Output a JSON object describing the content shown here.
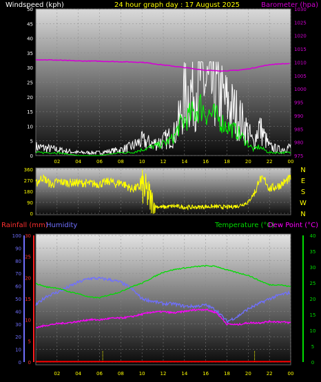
{
  "header": {
    "wind_title": "Windspeed (kph)",
    "date_title": "24 hour graph day : 17 August 2025",
    "baro_title": "Barometer (hpa)"
  },
  "bottom": {
    "rain_title": "Rainfall (mm)",
    "hum_title": "Humidity",
    "temp_title": "Temperature (°C)",
    "dew_title": "Dew Point (°C)"
  },
  "colors": {
    "wind": "#ffffff",
    "wind_avg": "#00ff00",
    "baro": "#d400d4",
    "direction": "#ffff00",
    "rain": "#ff0000",
    "humidity": "#7070ff",
    "temperature": "#00dd00",
    "dewpoint": "#ff00ff",
    "rain_marker": "#ffff00"
  },
  "chart_data": [
    {
      "type": "line",
      "title": "24 hour graph day : 17 August 2025",
      "x_ticks": [
        "02",
        "04",
        "06",
        "08",
        "10",
        "12",
        "14",
        "16",
        "18",
        "20",
        "22",
        "00"
      ],
      "y_left": {
        "label": "Windspeed (kph)",
        "ticks": [
          "0",
          "5",
          "10",
          "15",
          "20",
          "25",
          "30",
          "35",
          "40",
          "45",
          "50"
        ],
        "range": [
          0,
          50
        ]
      },
      "y_right": {
        "label": "Barometer (hpa)",
        "ticks": [
          "975",
          "980",
          "985",
          "990",
          "995",
          "1000",
          "1005",
          "1010",
          "1015",
          "1020",
          "1025",
          "1030"
        ],
        "range": [
          975,
          1030
        ]
      },
      "series": [
        {
          "name": "Windspeed (kph)",
          "axis": "left",
          "x": [
            0,
            2,
            4,
            6,
            8,
            9,
            10,
            11,
            12,
            13,
            13.5,
            14,
            15,
            15.5,
            16,
            17,
            18,
            19,
            20,
            20.5,
            21,
            22,
            23,
            24
          ],
          "values": [
            3,
            2,
            1,
            1,
            2,
            3,
            5,
            4,
            5,
            7,
            12,
            20,
            23,
            28,
            24,
            22,
            18,
            14,
            8,
            4,
            10,
            3,
            2,
            3
          ]
        },
        {
          "name": "Average wind",
          "axis": "left",
          "x": [
            0,
            2,
            4,
            6,
            8,
            9,
            10,
            11,
            12,
            13,
            13.5,
            14,
            15,
            15.5,
            16,
            17,
            18,
            19,
            20,
            20.5,
            21,
            22,
            23,
            24
          ],
          "values": [
            1,
            1,
            0,
            0,
            1,
            1,
            2,
            3,
            4,
            6,
            10,
            12,
            15,
            17,
            15,
            13,
            10,
            8,
            4,
            2,
            3,
            1,
            1,
            1
          ]
        },
        {
          "name": "Barometer (hpa)",
          "axis": "right",
          "x": [
            0,
            2,
            4,
            6,
            8,
            10,
            12,
            14,
            16,
            17,
            18,
            19,
            20,
            21,
            22,
            23,
            24
          ],
          "values": [
            1011,
            1010.8,
            1010.5,
            1010.4,
            1010.2,
            1010,
            1009,
            1008,
            1007,
            1006.8,
            1006.8,
            1007,
            1007.5,
            1008.3,
            1009.1,
            1009.4,
            1009.5
          ]
        }
      ]
    },
    {
      "type": "line",
      "y_left": {
        "ticks": [
          "0",
          "90",
          "180",
          "270",
          "360"
        ],
        "range": [
          0,
          360
        ]
      },
      "y_right": {
        "ticks": [
          "N",
          "W",
          "S",
          "E",
          "N"
        ]
      },
      "series": [
        {
          "name": "Wind direction",
          "x": [
            0,
            0.6,
            1,
            1.5,
            2,
            3,
            4,
            5,
            6,
            7,
            7.5,
            8,
            9,
            10,
            10.6,
            11,
            12,
            13,
            14,
            15,
            16,
            17,
            18,
            19,
            20,
            20.8,
            21,
            21.6,
            22,
            23,
            24
          ],
          "values": [
            240,
            295,
            270,
            230,
            260,
            250,
            250,
            245,
            240,
            265,
            240,
            255,
            200,
            220,
            150,
            60,
            50,
            60,
            50,
            50,
            55,
            55,
            50,
            60,
            90,
            200,
            280,
            270,
            200,
            230,
            290
          ]
        }
      ]
    },
    {
      "type": "line",
      "x_ticks": [
        "02",
        "04",
        "06",
        "08",
        "10",
        "12",
        "14",
        "16",
        "18",
        "20",
        "22",
        "00"
      ],
      "y_far_left": {
        "label": "Humidity",
        "ticks": [
          "0",
          "10",
          "20",
          "30",
          "40",
          "50",
          "60",
          "70",
          "80",
          "90",
          "100"
        ],
        "range": [
          0,
          100
        ]
      },
      "y_left": {
        "label": "Rainfall (mm)",
        "ticks": [
          "0",
          "5",
          "10",
          "15",
          "20",
          "25",
          "30"
        ],
        "range": [
          0,
          30
        ]
      },
      "y_right": {
        "label": "Temperature (°C)",
        "ticks": [
          "0",
          "5",
          "10",
          "15",
          "20",
          "25",
          "30",
          "35",
          "40"
        ],
        "range": [
          0,
          40
        ]
      },
      "series": [
        {
          "name": "Humidity",
          "axis": "far_left",
          "x": [
            0,
            1,
            2,
            3,
            4,
            5,
            6,
            7,
            8,
            9,
            10,
            11,
            12,
            13,
            14,
            15,
            16,
            17,
            18,
            19,
            20,
            21,
            22,
            23,
            24
          ],
          "values": [
            45,
            52,
            55,
            59,
            63,
            66,
            66,
            65,
            63,
            58,
            50,
            48,
            46,
            46,
            44,
            44,
            45,
            41,
            32,
            36,
            42,
            46,
            50,
            53,
            55
          ]
        },
        {
          "name": "Rainfall (mm)",
          "axis": "left",
          "x": [
            0,
            24
          ],
          "values": [
            0.1,
            0.1
          ]
        },
        {
          "name": "Temperature (°C)",
          "axis": "right",
          "x": [
            0,
            1,
            2,
            3,
            4,
            5,
            6,
            7,
            8,
            9,
            10,
            11,
            12,
            13,
            14,
            15,
            16,
            17,
            18,
            19,
            20,
            21,
            22,
            23,
            24
          ],
          "values": [
            24.8,
            23.7,
            23.4,
            22.3,
            21.6,
            20.5,
            20.3,
            21.3,
            22.2,
            23.8,
            24.9,
            26.7,
            28.4,
            29.2,
            29.7,
            30.1,
            30.4,
            30.2,
            29.1,
            28.2,
            27.4,
            25.8,
            24.4,
            24.4,
            23.8
          ]
        },
        {
          "name": "Dew Point (°C)",
          "axis": "right",
          "x": [
            0,
            1,
            2,
            3,
            4,
            5,
            6,
            7,
            8,
            9,
            10,
            11,
            12,
            13,
            14,
            15,
            16,
            17,
            18,
            19,
            20,
            21,
            22,
            23,
            24
          ],
          "values": [
            10.9,
            11.6,
            12.1,
            12.4,
            12.8,
            13.4,
            13.3,
            13.8,
            13.9,
            14.3,
            15.1,
            15.8,
            15.9,
            15.5,
            16.0,
            16.5,
            16.6,
            15.6,
            12.0,
            11.8,
            12.4,
            12.4,
            12.8,
            12.7,
            12.4
          ]
        }
      ],
      "markers_x": [
        6.3,
        20.6
      ]
    }
  ]
}
